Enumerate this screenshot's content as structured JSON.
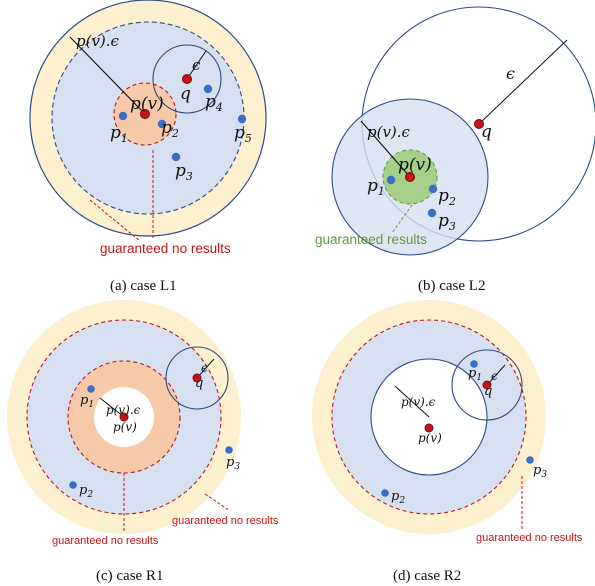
{
  "colors": {
    "outer_ring": "#fdf0cf",
    "inner_fill": "#d6e0f1",
    "border": "#2c4b86",
    "red_zone": "#f6c9a8",
    "green_zone": "#a6d08a",
    "point": "#3a6ec8",
    "query_point": "#c0151a",
    "red_text": "#c0151a",
    "green_text": "#5a9a3a"
  },
  "labels": {
    "pv_eps": "p(v).ϵ",
    "pv": "p(v)",
    "q": "q",
    "eps": "ϵ",
    "p": "p",
    "sub1": "1",
    "sub2": "2",
    "sub3": "3",
    "sub4": "4",
    "sub5": "5"
  },
  "notes": {
    "no_results": "guaranteed no results",
    "results": "guaranteed results"
  },
  "captions": {
    "a": "(a) case L1",
    "b": "(b) case L2",
    "c": "(c) case R1",
    "d": "(d) case R2"
  }
}
